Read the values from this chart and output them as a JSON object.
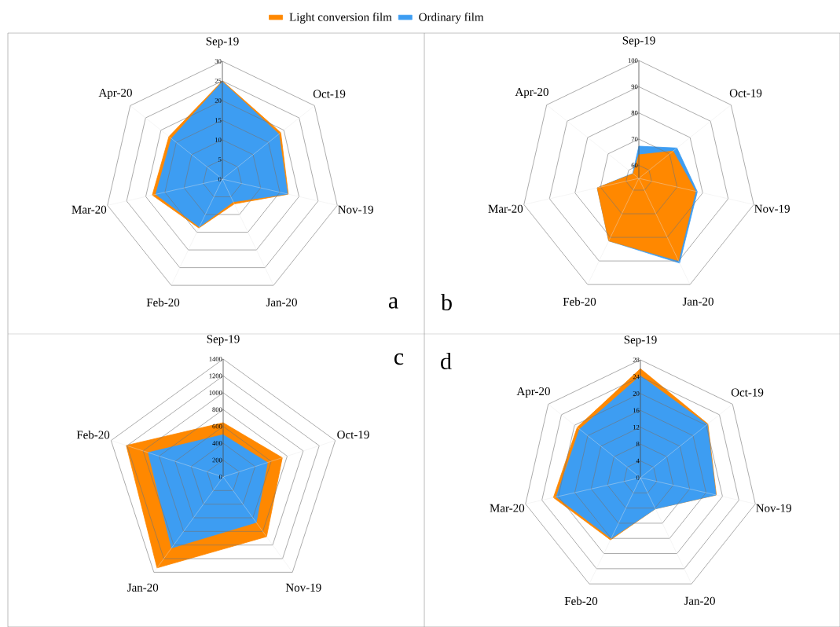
{
  "chart_data": [
    {
      "type": "radar",
      "categories": [
        "Sep-19",
        "Oct-19",
        "Nov-19",
        "Jan-20",
        "Feb-20",
        "Mar-20",
        "Apr-20"
      ],
      "ylim": [
        0,
        30
      ],
      "yticks": [
        0,
        5,
        10,
        15,
        20,
        25,
        30
      ],
      "legend": "top",
      "annotations": [
        "a"
      ],
      "series": [
        {
          "name": "Light conversion film",
          "color": "#ff8800",
          "values": [
            25,
            19,
            17.2,
            7,
            13.8,
            18.3,
            17.4
          ]
        },
        {
          "name": "Ordinary film",
          "color": "#3d9df2",
          "values": [
            24.8,
            18.4,
            17,
            6.4,
            13.5,
            17.4,
            16.6
          ]
        }
      ]
    },
    {
      "type": "radar",
      "categories": [
        "Sep-19",
        "Oct-19",
        "Nov-19",
        "Jan-20",
        "Feb-20",
        "Mar-20",
        "Apr-20"
      ],
      "ylim": [
        55,
        100
      ],
      "yticks": [
        60,
        70,
        80,
        90,
        100
      ],
      "annotations": [
        "b"
      ],
      "series": [
        {
          "color": "#3d9df2",
          "values": [
            67.3,
            73.6,
            77.9,
            90.9,
            81.5,
            71.3,
            58
          ]
        },
        {
          "color": "#ff8800",
          "values": [
            64,
            71.7,
            77.2,
            89.9,
            81.5,
            71.3,
            57.8
          ]
        }
      ]
    },
    {
      "type": "radar",
      "categories": [
        "Sep-19",
        "Oct-19",
        "Nov-19",
        "Jan-20",
        "Feb-20"
      ],
      "ylim": [
        0,
        1400
      ],
      "yticks": [
        0,
        200,
        400,
        600,
        800,
        1000,
        1200,
        1400
      ],
      "annotations": [
        "c"
      ],
      "series": [
        {
          "color": "#ff8800",
          "values": [
            644,
            739,
            877,
            1336,
            1210
          ]
        },
        {
          "color": "#3d9df2",
          "values": [
            502,
            553,
            668,
            1043,
            936
          ]
        }
      ]
    },
    {
      "type": "radar",
      "categories": [
        "Sep-19",
        "Oct-19",
        "Nov-19",
        "Jan-20",
        "Feb-20",
        "Mar-20",
        "Apr-20"
      ],
      "ylim": [
        0,
        28
      ],
      "yticks": [
        0,
        4,
        8,
        12,
        16,
        20,
        24,
        28
      ],
      "annotations": [
        "d"
      ],
      "series": [
        {
          "color": "#ff8800",
          "values": [
            25.9,
            20.5,
            18.5,
            8.2,
            16.4,
            21.2,
            19.2
          ]
        },
        {
          "color": "#3d9df2",
          "values": [
            24.2,
            20.3,
            18.4,
            8.2,
            16,
            20.5,
            18.5
          ]
        }
      ]
    }
  ]
}
